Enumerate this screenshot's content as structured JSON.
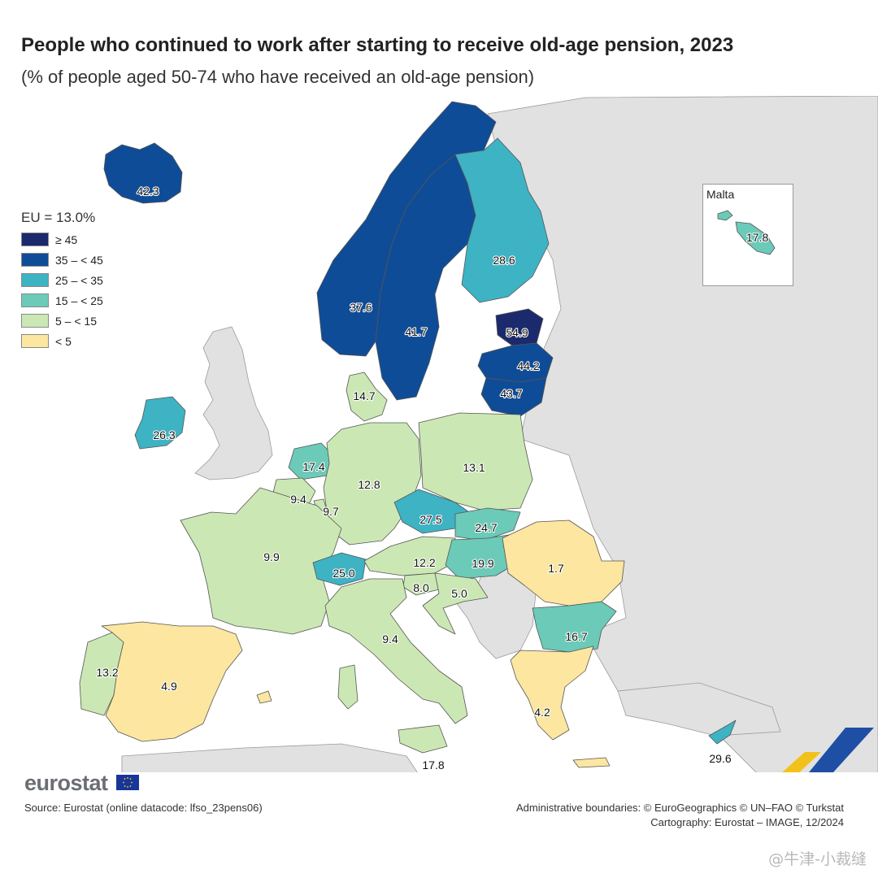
{
  "title": "People who continued to work after starting to receive old-age pension, 2023",
  "subtitle": "(% of people aged 50-74 who have received an old-age pension)",
  "legend": {
    "title": "EU = 13.0%",
    "classes": [
      {
        "label": "≥ 45",
        "color": "#1a2a6c"
      },
      {
        "label": "35 – < 45",
        "color": "#0f4c97"
      },
      {
        "label": "25 – < 35",
        "color": "#3db3c4"
      },
      {
        "label": "15 – < 25",
        "color": "#6bcab8"
      },
      {
        "label": "5 – < 15",
        "color": "#cbe8b4"
      },
      {
        "label": "< 5",
        "color": "#fce6a0"
      }
    ]
  },
  "no_data_color": "#e1e1e1",
  "sea_color": "#ffffff",
  "regions": [
    {
      "name": "Iceland",
      "value": "42.3"
    },
    {
      "name": "Norway",
      "value": "37.6"
    },
    {
      "name": "Sweden",
      "value": "41.7"
    },
    {
      "name": "Finland",
      "value": "28.6"
    },
    {
      "name": "Estonia",
      "value": "54.9"
    },
    {
      "name": "Latvia",
      "value": "44.2"
    },
    {
      "name": "Lithuania",
      "value": "43.7"
    },
    {
      "name": "Denmark",
      "value": "14.7"
    },
    {
      "name": "Ireland",
      "value": "26.3"
    },
    {
      "name": "Netherlands",
      "value": "17.4"
    },
    {
      "name": "Belgium",
      "value": "9.4"
    },
    {
      "name": "Luxembourg",
      "value": "9.7"
    },
    {
      "name": "Germany",
      "value": "12.8"
    },
    {
      "name": "Poland",
      "value": "13.1"
    },
    {
      "name": "Czechia",
      "value": "27.5"
    },
    {
      "name": "Slovakia",
      "value": "24.7"
    },
    {
      "name": "France",
      "value": "9.9"
    },
    {
      "name": "Switzerland",
      "value": "25.0"
    },
    {
      "name": "Austria",
      "value": "12.2"
    },
    {
      "name": "Hungary",
      "value": "19.9"
    },
    {
      "name": "Romania",
      "value": "1.7"
    },
    {
      "name": "Slovenia",
      "value": "8.0"
    },
    {
      "name": "Croatia",
      "value": "5.0"
    },
    {
      "name": "Italy",
      "value": "9.4"
    },
    {
      "name": "Bulgaria",
      "value": "16.7"
    },
    {
      "name": "Portugal",
      "value": "13.2"
    },
    {
      "name": "Spain",
      "value": "4.9"
    },
    {
      "name": "Greece",
      "value": "4.2"
    },
    {
      "name": "Cyprus",
      "value": "29.6"
    },
    {
      "name": "Malta",
      "value": "17.8"
    }
  ],
  "inset": {
    "title": "Malta",
    "value": "17.8"
  },
  "brand": {
    "name": "eurostat"
  },
  "source": "Source: Eurostat (online datacode: lfso_23pens06)",
  "credits": {
    "line1": "Administrative boundaries: © EuroGeographics © UN–FAO © Turkstat",
    "line2": "Cartography: Eurostat – IMAGE, 12/2024"
  },
  "watermark": "@牛津-小裁缝"
}
